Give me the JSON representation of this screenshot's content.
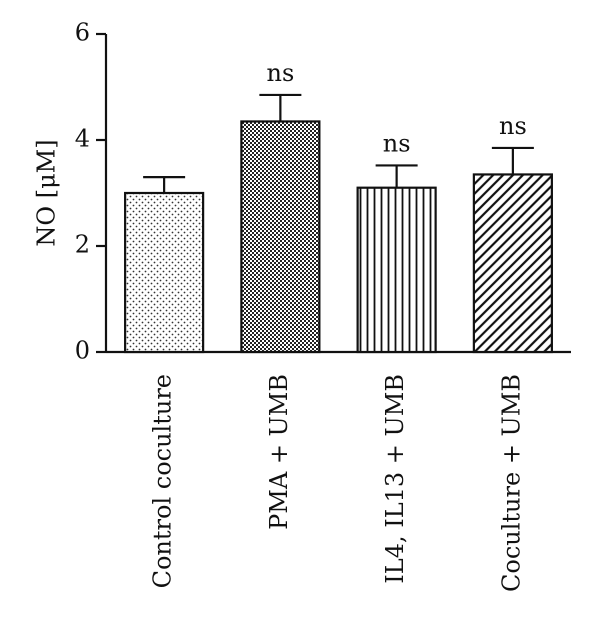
{
  "chart_data": {
    "type": "bar",
    "title": "",
    "xlabel": "",
    "ylabel": "NO [μM]",
    "ylim": [
      0,
      6
    ],
    "yticks": [
      0,
      2,
      4,
      6
    ],
    "grid": false,
    "categories": [
      "Control coculture",
      "PMA + UMB",
      "IL4, IL13 + UMB",
      "Coculture + UMB"
    ],
    "values": [
      3.0,
      4.35,
      3.1,
      3.35
    ],
    "errors": [
      0.3,
      0.5,
      0.42,
      0.5
    ],
    "annotations": [
      "",
      "ns",
      "ns",
      "ns"
    ],
    "patterns": [
      "dots",
      "checker",
      "vertical-lines",
      "diagonal-lines"
    ]
  }
}
